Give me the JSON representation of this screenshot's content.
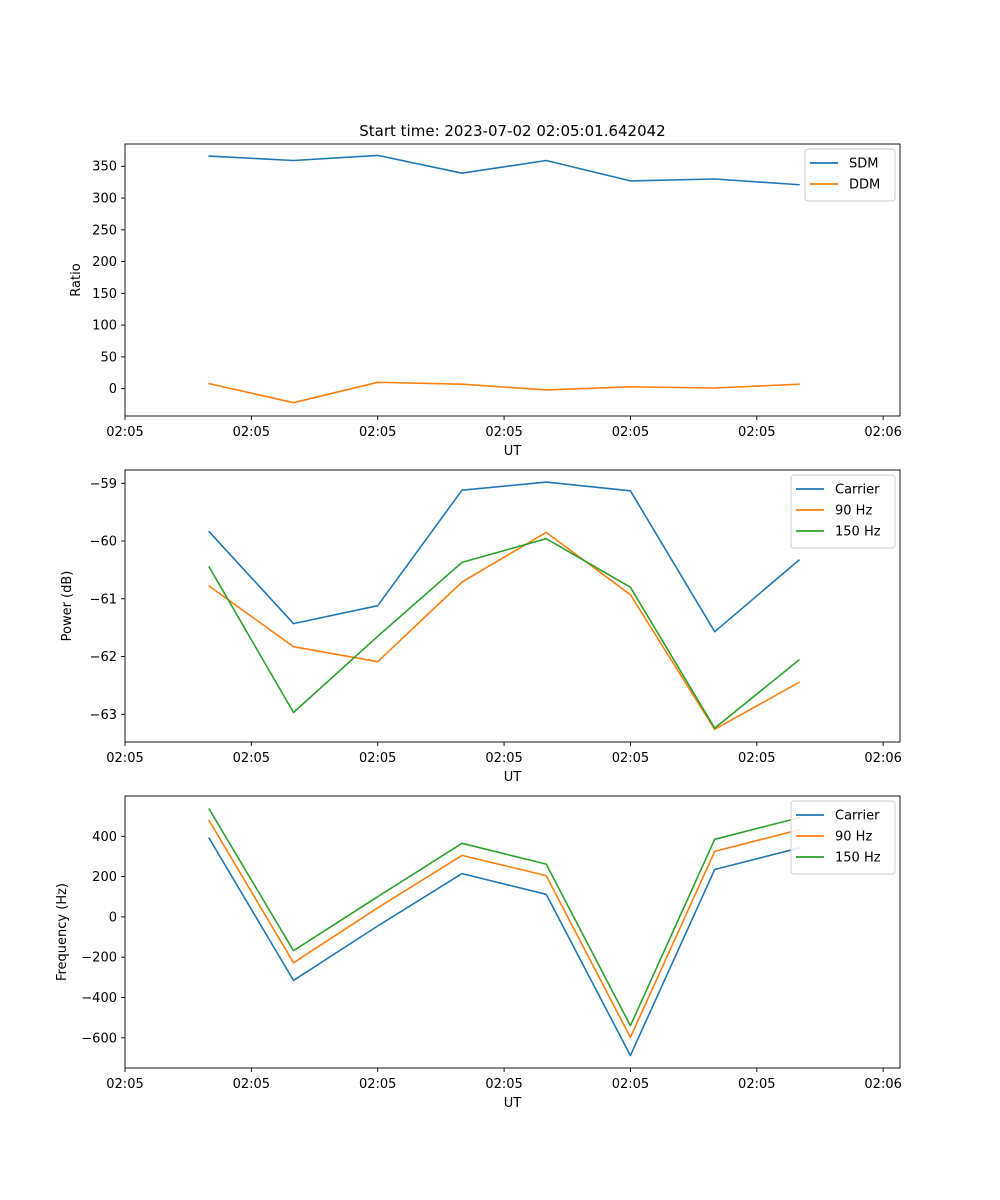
{
  "title": "Start time: 2023-07-02 02:05:01.642042",
  "colors": {
    "c0": "#1f77b4",
    "c1": "#ff7f0e",
    "c2": "#2ca02c"
  },
  "chart_data": [
    {
      "type": "line",
      "title": "Start time: 2023-07-02 02:05:01.642042",
      "xlabel": "UT",
      "ylabel": "Ratio",
      "x": [
        1,
        2,
        3,
        4,
        5,
        6,
        7,
        8
      ],
      "xlim": [
        0,
        9.2
      ],
      "xticks": [
        0,
        1.5,
        3,
        4.5,
        6,
        7.5,
        9
      ],
      "xtick_labels": [
        "02:05",
        "02:05",
        "02:05",
        "02:05",
        "02:05",
        "02:05",
        "02:06"
      ],
      "ylim": [
        -43,
        385
      ],
      "yticks": [
        0,
        50,
        100,
        150,
        200,
        250,
        300,
        350
      ],
      "ytick_labels": [
        "0",
        "50",
        "100",
        "150",
        "200",
        "250",
        "300",
        "350"
      ],
      "legend": "top-right",
      "series": [
        {
          "name": "SDM",
          "color": "#1f77b4",
          "values": [
            366,
            359,
            367,
            339,
            359,
            327,
            330,
            321
          ]
        },
        {
          "name": "DDM",
          "color": "#ff7f0e",
          "values": [
            8,
            -22,
            10,
            7,
            -2,
            3,
            1,
            7
          ]
        }
      ]
    },
    {
      "type": "line",
      "title": "",
      "xlabel": "UT",
      "ylabel": "Power (dB)",
      "x": [
        1,
        2,
        3,
        4,
        5,
        6,
        7,
        8
      ],
      "xlim": [
        0,
        9.2
      ],
      "xticks": [
        0,
        1.5,
        3,
        4.5,
        6,
        7.5,
        9
      ],
      "xtick_labels": [
        "02:05",
        "02:05",
        "02:05",
        "02:05",
        "02:05",
        "02:05",
        "02:06"
      ],
      "ylim": [
        -63.48,
        -58.77
      ],
      "yticks": [
        -63,
        -62,
        -61,
        -60,
        -59
      ],
      "ytick_labels": [
        "−63",
        "−62",
        "−61",
        "−60",
        "−59"
      ],
      "legend": "top-right",
      "series": [
        {
          "name": "Carrier",
          "color": "#1f77b4",
          "values": [
            -59.84,
            -61.43,
            -61.12,
            -59.12,
            -58.98,
            -59.13,
            -61.57,
            -60.33
          ]
        },
        {
          "name": "90 Hz",
          "color": "#ff7f0e",
          "values": [
            -60.78,
            -61.83,
            -62.09,
            -60.71,
            -59.85,
            -60.93,
            -63.26,
            -62.45
          ]
        },
        {
          "name": "150 Hz",
          "color": "#2ca02c",
          "values": [
            -60.45,
            -62.97,
            -61.65,
            -60.37,
            -59.96,
            -60.8,
            -63.24,
            -62.06
          ]
        }
      ]
    },
    {
      "type": "line",
      "title": "",
      "xlabel": "UT",
      "ylabel": "Frequency (Hz)",
      "x": [
        1,
        2,
        3,
        4,
        5,
        6,
        7,
        8
      ],
      "xlim": [
        0,
        9.2
      ],
      "xticks": [
        0,
        1.5,
        3,
        4.5,
        6,
        7.5,
        9
      ],
      "xtick_labels": [
        "02:05",
        "02:05",
        "02:05",
        "02:05",
        "02:05",
        "02:05",
        "02:06"
      ],
      "ylim": [
        -750,
        600
      ],
      "yticks": [
        -600,
        -400,
        -200,
        0,
        200,
        400
      ],
      "ytick_labels": [
        "−600",
        "−400",
        "−200",
        "0",
        "200",
        "400"
      ],
      "legend": "top-right",
      "series": [
        {
          "name": "Carrier",
          "color": "#1f77b4",
          "values": [
            390,
            -315,
            -45,
            215,
            112,
            -688,
            235,
            342
          ]
        },
        {
          "name": "90 Hz",
          "color": "#ff7f0e",
          "values": [
            478,
            -228,
            45,
            305,
            205,
            -598,
            325,
            432
          ]
        },
        {
          "name": "150 Hz",
          "color": "#2ca02c",
          "values": [
            535,
            -168,
            100,
            365,
            262,
            -540,
            385,
            492
          ]
        }
      ]
    }
  ]
}
